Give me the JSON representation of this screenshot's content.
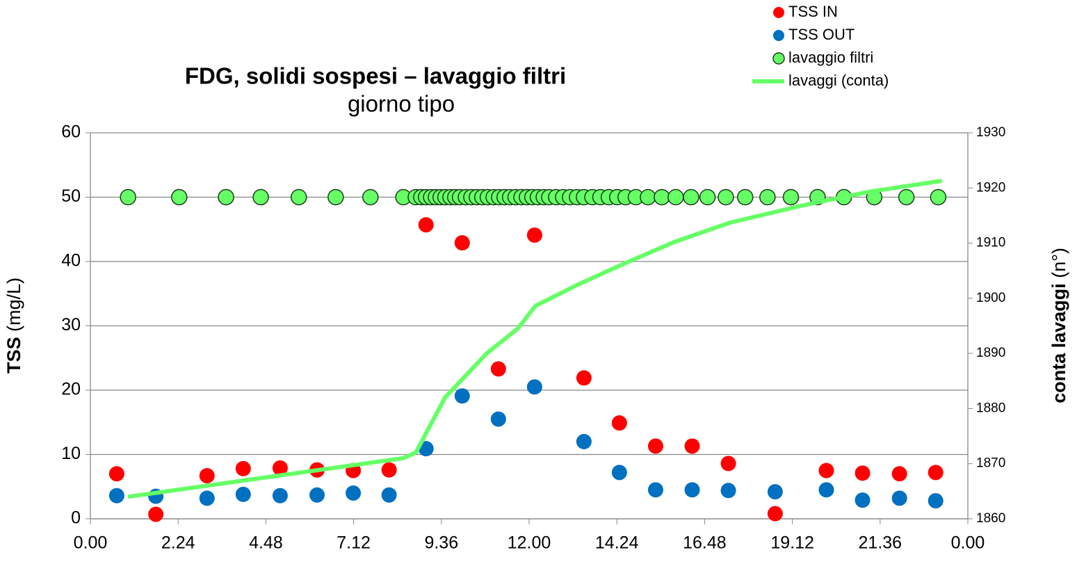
{
  "chart_data": {
    "type": "scatter",
    "title": "FDG, solidi sospesi – lavaggio filtri",
    "subtitle": "giorno tipo",
    "y_label": "TSS",
    "y_unit": "(mg/L)",
    "y2_label": "conta lavaggi",
    "y2_unit": "(n°)",
    "xlim": [
      0,
      24
    ],
    "xticks": [
      {
        "value": 0,
        "label": "0.00"
      },
      {
        "value": 2.4,
        "label": "2.24"
      },
      {
        "value": 4.8,
        "label": "4.48"
      },
      {
        "value": 7.2,
        "label": "7.12"
      },
      {
        "value": 9.6,
        "label": "9.36"
      },
      {
        "value": 12,
        "label": "12.00"
      },
      {
        "value": 14.4,
        "label": "14.24"
      },
      {
        "value": 16.8,
        "label": "16.48"
      },
      {
        "value": 19.2,
        "label": "19.12"
      },
      {
        "value": 21.6,
        "label": "21.36"
      },
      {
        "value": 24,
        "label": "0.00"
      }
    ],
    "ylim": [
      0,
      60
    ],
    "yticks": [
      0,
      10,
      20,
      30,
      40,
      50,
      60
    ],
    "y2lim": [
      1860,
      1930
    ],
    "y2ticks": [
      1860,
      1870,
      1880,
      1890,
      1900,
      1910,
      1920,
      1930
    ],
    "grid": true,
    "legend": "top-right",
    "series": [
      {
        "name": "TSS IN",
        "type": "scatter",
        "color": "#ff0000",
        "x": [
          0.72,
          1.79,
          3.19,
          4.18,
          5.19,
          6.2,
          7.19,
          8.17,
          9.18,
          10.17,
          11.16,
          12.15,
          13.5,
          14.47,
          15.46,
          16.46,
          17.45,
          18.73,
          20.13,
          21.12,
          22.13,
          23.12
        ],
        "values": [
          7.0,
          0.7,
          6.7,
          7.8,
          7.9,
          7.6,
          7.5,
          7.6,
          45.7,
          42.9,
          23.3,
          44.1,
          21.9,
          14.9,
          11.3,
          11.3,
          8.6,
          0.8,
          7.5,
          7.1,
          7.0,
          7.2
        ]
      },
      {
        "name": "TSS OUT",
        "type": "scatter",
        "color": "#0070c0",
        "x": [
          0.72,
          1.79,
          3.19,
          4.18,
          5.19,
          6.2,
          7.19,
          8.17,
          9.18,
          10.17,
          11.16,
          12.15,
          13.5,
          14.47,
          15.46,
          16.46,
          17.45,
          18.73,
          20.13,
          21.12,
          22.13,
          23.12
        ],
        "values": [
          3.6,
          3.5,
          3.2,
          3.8,
          3.6,
          3.7,
          4.0,
          3.7,
          10.9,
          19.1,
          15.5,
          20.5,
          12.0,
          7.2,
          4.5,
          4.5,
          4.4,
          4.2,
          4.5,
          2.9,
          3.2,
          2.8
        ]
      },
      {
        "name": "lavaggio filtri",
        "type": "scatter",
        "color": "#66ff66",
        "edge": "#1a3a1a",
        "x": [
          1.03,
          2.43,
          3.71,
          4.66,
          5.7,
          6.71,
          7.66,
          8.56,
          8.9,
          9.05,
          9.18,
          9.32,
          9.45,
          9.58,
          9.71,
          9.85,
          9.98,
          10.11,
          10.27,
          10.42,
          10.57,
          10.72,
          10.87,
          11.03,
          11.18,
          11.33,
          11.48,
          11.63,
          11.79,
          11.94,
          12.09,
          12.24,
          12.4,
          12.55,
          12.74,
          12.93,
          13.12,
          13.31,
          13.5,
          13.73,
          13.95,
          14.18,
          14.41,
          14.64,
          14.92,
          15.25,
          15.63,
          16.01,
          16.43,
          16.88,
          17.38,
          17.91,
          18.52,
          19.16,
          19.89,
          20.61,
          21.44,
          22.32,
          23.19
        ],
        "values": [
          50,
          50,
          50,
          50,
          50,
          50,
          50,
          50,
          50,
          50,
          50,
          50,
          50,
          50,
          50,
          50,
          50,
          50,
          50,
          50,
          50,
          50,
          50,
          50,
          50,
          50,
          50,
          50,
          50,
          50,
          50,
          50,
          50,
          50,
          50,
          50,
          50,
          50,
          50,
          50,
          50,
          50,
          50,
          50,
          50,
          50,
          50,
          50,
          50,
          50,
          50,
          50,
          50,
          50,
          50,
          50,
          50,
          50,
          50
        ]
      },
      {
        "name": "lavaggi (conta)",
        "type": "line",
        "axis": "y2",
        "color": "#66ff66",
        "x": [
          1.03,
          8.56,
          8.9,
          9.7,
          10.84,
          11.69,
          12.17,
          13.31,
          14.64,
          15.97,
          17.49,
          19.39,
          21.29,
          23.29
        ],
        "values": [
          1864,
          1871,
          1872,
          1882,
          1890,
          1894.5,
          1898.6,
          1902.4,
          1906.4,
          1910.2,
          1913.7,
          1916.7,
          1919.3,
          1921.3
        ]
      }
    ]
  }
}
